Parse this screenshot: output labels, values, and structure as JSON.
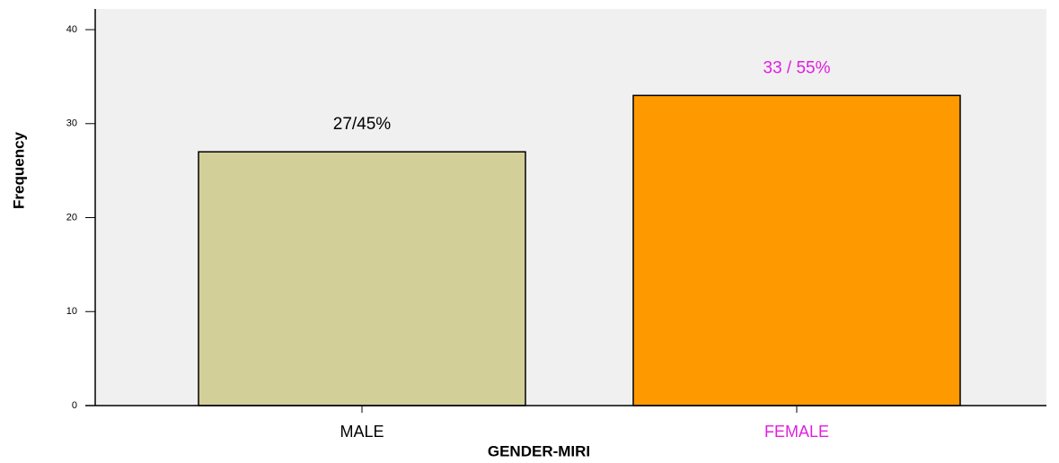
{
  "chart_data": {
    "type": "bar",
    "x_label": "GENDER-MIRI",
    "y_label": "Frequency",
    "categories": [
      "MALE",
      "FEMALE"
    ],
    "values": [
      27,
      33
    ],
    "value_labels": [
      "27/45%",
      "33 / 55%"
    ],
    "colors": [
      "#d3cf99",
      "#ff9900"
    ],
    "label_colors": [
      "#000000",
      "#e020e0"
    ],
    "ylim": [
      0,
      42.2
    ],
    "yticks": [
      0,
      10,
      20,
      30,
      40
    ]
  }
}
